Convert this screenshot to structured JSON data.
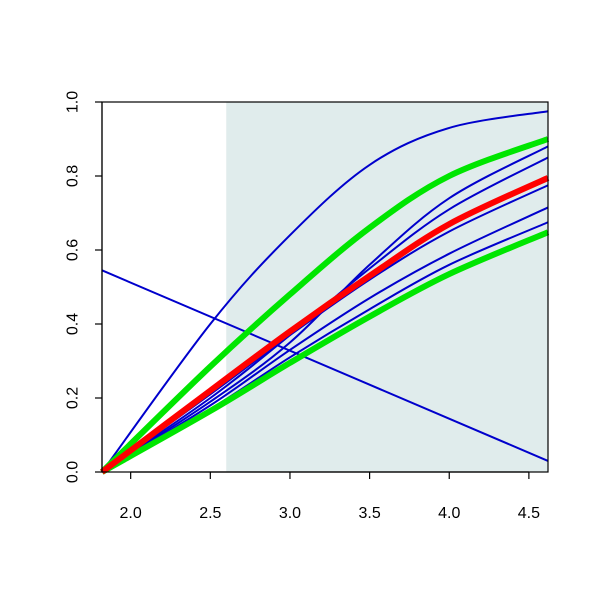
{
  "chart_data": {
    "type": "line",
    "title": "",
    "xlabel": "",
    "ylabel": "",
    "xlim": [
      1.82,
      4.62
    ],
    "ylim": [
      0.0,
      1.0
    ],
    "x_ticks": [
      2.0,
      2.5,
      3.0,
      3.5,
      4.0,
      4.5
    ],
    "x_tick_labels": [
      "2.0",
      "2.5",
      "3.0",
      "3.5",
      "4.0",
      "4.5"
    ],
    "y_ticks": [
      0.0,
      0.2,
      0.4,
      0.6,
      0.8,
      1.0
    ],
    "y_tick_labels": [
      "0.0",
      "0.2",
      "0.4",
      "0.6",
      "0.8",
      "1.0"
    ],
    "shaded_region": {
      "x_from": 2.6,
      "x_to": 4.62,
      "color": "#e0ecec"
    },
    "colors": {
      "blue": "#0000cc",
      "green": "#00e600",
      "red": "#ff0000"
    },
    "grid": false,
    "legend": "none",
    "series": [
      {
        "color": "blue",
        "width": "thin",
        "x": [
          1.82,
          2.5,
          3.0,
          3.5,
          4.0,
          4.62
        ],
        "y": [
          0.0,
          0.4,
          0.64,
          0.83,
          0.93,
          0.975
        ]
      },
      {
        "color": "blue",
        "width": "thin",
        "x": [
          1.82,
          2.5,
          3.0,
          3.5,
          4.0,
          4.62
        ],
        "y": [
          0.0,
          0.19,
          0.35,
          0.56,
          0.74,
          0.88
        ]
      },
      {
        "color": "blue",
        "width": "thin",
        "x": [
          1.82,
          2.5,
          3.0,
          3.5,
          4.0,
          4.62
        ],
        "y": [
          0.0,
          0.2,
          0.37,
          0.55,
          0.71,
          0.85
        ]
      },
      {
        "color": "blue",
        "width": "thin",
        "x": [
          1.82,
          2.5,
          3.0,
          3.5,
          4.0,
          4.62
        ],
        "y": [
          0.0,
          0.21,
          0.37,
          0.52,
          0.65,
          0.775
        ]
      },
      {
        "color": "blue",
        "width": "thin",
        "x": [
          1.82,
          2.5,
          3.0,
          3.5,
          4.0,
          4.62
        ],
        "y": [
          0.0,
          0.18,
          0.33,
          0.47,
          0.59,
          0.715
        ]
      },
      {
        "color": "blue",
        "width": "thin",
        "x": [
          1.82,
          2.5,
          3.0,
          3.5,
          4.0,
          4.62
        ],
        "y": [
          0.0,
          0.17,
          0.31,
          0.44,
          0.56,
          0.675
        ]
      },
      {
        "color": "blue",
        "width": "thin",
        "x": [
          1.82,
          4.62
        ],
        "y": [
          0.545,
          0.03
        ]
      },
      {
        "color": "green",
        "width": "thick",
        "x": [
          1.82,
          2.5,
          3.0,
          3.5,
          4.0,
          4.62
        ],
        "y": [
          0.0,
          0.285,
          0.48,
          0.66,
          0.8,
          0.9
        ]
      },
      {
        "color": "green",
        "width": "thick",
        "x": [
          1.82,
          2.5,
          3.0,
          3.5,
          4.0,
          4.62
        ],
        "y": [
          0.0,
          0.165,
          0.295,
          0.42,
          0.535,
          0.648
        ]
      },
      {
        "color": "red",
        "width": "thick",
        "x": [
          1.82,
          2.5,
          3.0,
          3.5,
          4.0,
          4.62
        ],
        "y": [
          0.0,
          0.22,
          0.38,
          0.53,
          0.67,
          0.795
        ]
      }
    ]
  }
}
